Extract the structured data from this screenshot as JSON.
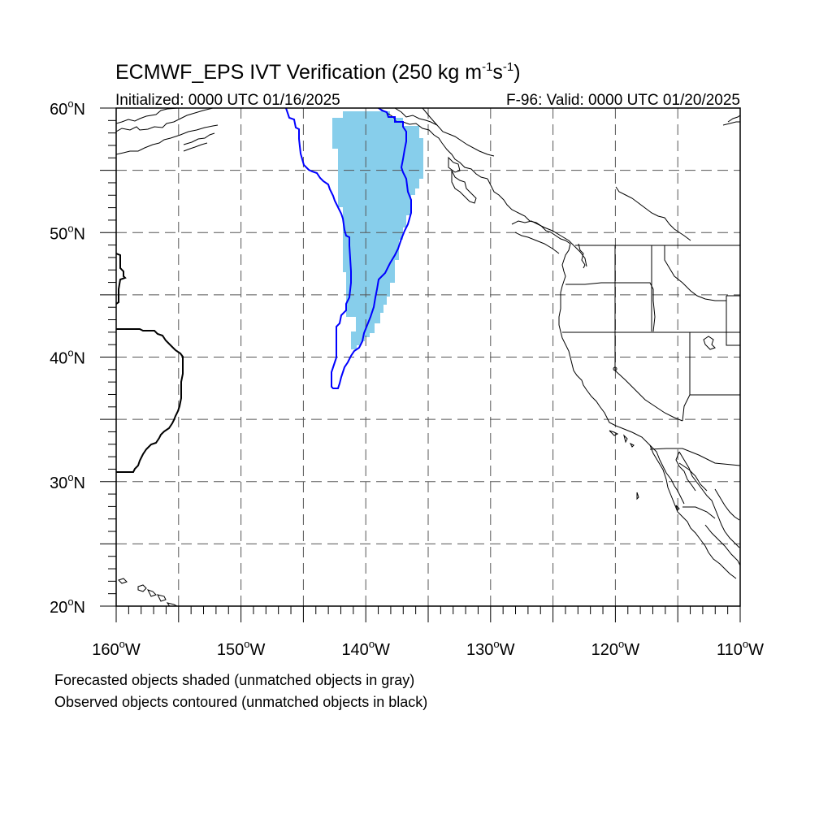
{
  "title": {
    "main": "ECMWF_EPS IVT Verification (250 kg m",
    "sup1": "-1",
    "mid": "s",
    "sup2": "-1",
    "end": ")"
  },
  "subtitle_left": "Initialized: 0000 UTC 01/16/2025",
  "subtitle_right": "F-96: Valid: 0000 UTC 01/20/2025",
  "lat_labels": [
    {
      "deg": "60",
      "suffix": "N",
      "value": 60
    },
    {
      "deg": "50",
      "suffix": "N",
      "value": 50
    },
    {
      "deg": "40",
      "suffix": "N",
      "value": 40
    },
    {
      "deg": "30",
      "suffix": "N",
      "value": 30
    },
    {
      "deg": "20",
      "suffix": "N",
      "value": 20
    }
  ],
  "lon_labels": [
    {
      "deg": "160",
      "suffix": "W",
      "value": -160
    },
    {
      "deg": "150",
      "suffix": "W",
      "value": -150
    },
    {
      "deg": "140",
      "suffix": "W",
      "value": -140
    },
    {
      "deg": "130",
      "suffix": "W",
      "value": -130
    },
    {
      "deg": "120",
      "suffix": "W",
      "value": -120
    },
    {
      "deg": "110",
      "suffix": "W",
      "value": -110
    }
  ],
  "legend_line1": "Forecasted objects shaded (unmatched objects in gray)",
  "legend_line2": "Observed objects contoured (unmatched objects in black)",
  "colors": {
    "forecast_fill": "#87ceeb",
    "observed_matched": "#0000ff",
    "observed_unmatched": "#000000",
    "coastline": "#000000",
    "grid": "#555555"
  },
  "map_extent": {
    "lon_min": -160,
    "lon_max": -110,
    "lat_min": 20,
    "lat_max": 60
  }
}
